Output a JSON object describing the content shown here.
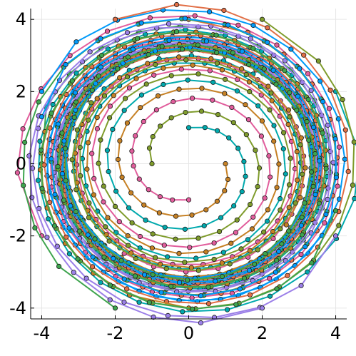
{
  "chart_data": {
    "type": "line",
    "title": "",
    "xlabel": "",
    "ylabel": "",
    "xlim": [
      -4.3,
      4.3
    ],
    "ylim": [
      -4.3,
      4.3
    ],
    "grid": true,
    "legend": "none",
    "x_ticks": [
      {
        "value": -4,
        "label": "-4"
      },
      {
        "value": -2,
        "label": "-2"
      },
      {
        "value": 0,
        "label": "0"
      },
      {
        "value": 2,
        "label": "2"
      },
      {
        "value": 4,
        "label": "4"
      }
    ],
    "y_ticks": [
      {
        "value": 4,
        "label": "4"
      },
      {
        "value": 2,
        "label": "2"
      },
      {
        "value": 0,
        "label": "0"
      },
      {
        "value": -2,
        "label": "-2"
      },
      {
        "value": -4,
        "label": "-4"
      }
    ],
    "spiral_model": {
      "limit_radius": 3.1,
      "angular_step_rad": 0.28,
      "points_per_trajectory": 70
    },
    "series": [
      {
        "start": [
          0,
          1
        ],
        "color": "#00a9ad"
      },
      {
        "start": [
          0,
          -1
        ],
        "color": "#e15d9c"
      },
      {
        "start": [
          1,
          0
        ],
        "color": "#c68125"
      },
      {
        "start": [
          -1,
          0
        ],
        "color": "#7f9c2c"
      },
      {
        "start": [
          4,
          2
        ],
        "color": "#00a9ad"
      },
      {
        "start": [
          -4,
          -2
        ],
        "color": "#e15d9c"
      },
      {
        "start": [
          4,
          0
        ],
        "color": "#009af9"
      },
      {
        "start": [
          -4,
          0
        ],
        "color": "#3ea44e"
      },
      {
        "start": [
          -4,
          2
        ],
        "color": "#009af9"
      },
      {
        "start": [
          4,
          -2
        ],
        "color": "#9b7fe8"
      },
      {
        "start": [
          -2,
          4
        ],
        "color": "#e26f46"
      },
      {
        "start": [
          2,
          -4
        ],
        "color": "#9b7fe8"
      },
      {
        "start": [
          0,
          4
        ],
        "color": "#e26f46"
      },
      {
        "start": [
          0,
          -4
        ],
        "color": "#c68125"
      },
      {
        "start": [
          -2,
          -4
        ],
        "color": "#3ea44e"
      },
      {
        "start": [
          2,
          4
        ],
        "color": "#7f9c2c"
      },
      {
        "start": [
          -4,
          1.3
        ],
        "color": "#009af9"
      },
      {
        "start": [
          4,
          -1.3
        ],
        "color": "#3ea44e"
      }
    ],
    "axis_color": "#000000",
    "grid_color": "#e6e6e6"
  }
}
